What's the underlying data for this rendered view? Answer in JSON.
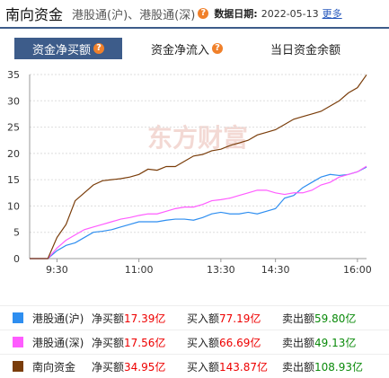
{
  "header": {
    "title": "南向资金",
    "subtitle": "港股通(沪)、港股通(深)",
    "help_icon": "?",
    "date_label": "数据日期:",
    "date": "2022-05-13",
    "more": "更多"
  },
  "tabs": [
    {
      "label": "资金净买额",
      "help_icon": "?",
      "active": true
    },
    {
      "label": "资金净流入",
      "help_icon": "?",
      "active": false
    },
    {
      "label": "当日资金余额",
      "active": false
    }
  ],
  "watermark": "东方财富",
  "chart_data": {
    "type": "line",
    "categories": [
      null,
      null,
      null,
      "9:30",
      null,
      null,
      null,
      null,
      null,
      null,
      null,
      null,
      "11:00",
      null,
      null,
      null,
      null,
      null,
      null,
      null,
      null,
      "13:30",
      null,
      null,
      null,
      null,
      null,
      "14:30",
      null,
      null,
      null,
      null,
      null,
      null,
      null,
      null,
      "16:00",
      null
    ],
    "series": [
      {
        "name": "港股通(沪)",
        "color": "#2e8ef0",
        "values": [
          0,
          0,
          0,
          1.5,
          2.5,
          3,
          4,
          5,
          5.2,
          5.5,
          6,
          6.5,
          7,
          7,
          7,
          7.3,
          7.5,
          7.5,
          7.3,
          7.8,
          8.5,
          8.8,
          8.5,
          8.5,
          8.8,
          8.5,
          9,
          9.5,
          11.5,
          12,
          13.5,
          14.5,
          15.5,
          16,
          15.8,
          16,
          16.5,
          17.39
        ]
      },
      {
        "name": "港股通(深)",
        "color": "#ff5cff",
        "values": [
          0,
          0,
          0,
          2,
          3.5,
          4.5,
          5.5,
          6,
          6.5,
          7,
          7.5,
          7.8,
          8.2,
          8.5,
          8.5,
          9,
          9.5,
          9.8,
          9.8,
          10.3,
          11,
          11.2,
          11.5,
          12,
          12.5,
          13,
          13,
          12.5,
          12.2,
          12.5,
          12.5,
          13,
          14,
          14.5,
          15.5,
          16,
          16.5,
          17.56
        ]
      },
      {
        "name": "南向资金",
        "color": "#7a3d0a",
        "values": [
          0,
          0,
          0,
          4,
          6.5,
          11,
          12.5,
          14,
          14.8,
          15,
          15.2,
          15.5,
          16,
          17,
          16.8,
          17.5,
          17.5,
          18.5,
          19.5,
          19.8,
          20.5,
          20.8,
          21.5,
          22,
          22.5,
          23.5,
          24,
          24.5,
          25.5,
          26.5,
          27,
          27.5,
          28,
          29,
          30,
          31.5,
          32.5,
          34.95
        ]
      }
    ],
    "ylim": [
      0,
      35
    ],
    "yticks": [
      0,
      5,
      10,
      15,
      20,
      25,
      30,
      35
    ],
    "grid": true
  },
  "summary": [
    {
      "net_label": "净买额",
      "net": "17.39亿",
      "buy_label": "买入额",
      "buy": "77.19亿",
      "sell_label": "卖出额",
      "sell": "59.80亿"
    },
    {
      "net_label": "净买额",
      "net": "17.56亿",
      "buy_label": "买入额",
      "buy": "66.69亿",
      "sell_label": "卖出额",
      "sell": "49.13亿"
    },
    {
      "net_label": "净买额",
      "net": "34.95亿",
      "buy_label": "买入额",
      "buy": "143.87亿",
      "sell_label": "卖出额",
      "sell": "108.93亿"
    }
  ]
}
